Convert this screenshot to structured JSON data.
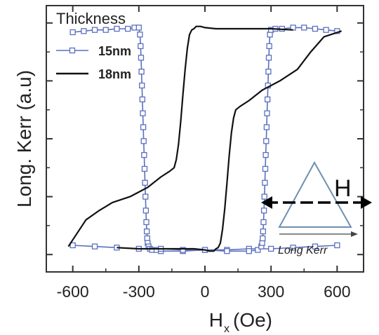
{
  "chart_data": {
    "type": "line",
    "title": "",
    "xlabel": "H",
    "xlabel_subscript": "x",
    "xlabel_unit": "(Oe)",
    "ylabel": "Long. Kerr (a.u)",
    "xlim": [
      -720,
      720
    ],
    "ylim": [
      -1.15,
      1.15
    ],
    "x_ticks": [
      -600,
      -300,
      0,
      300,
      600
    ],
    "x_tick_labels": [
      "-600",
      "-300",
      "0",
      "300",
      "600"
    ],
    "grid": false,
    "legend": {
      "title": "Thickness",
      "position": "top-left",
      "entries": [
        "15nm",
        "18nm"
      ]
    },
    "series": [
      {
        "name": "15nm",
        "color": "#5a6fc0",
        "marker": "open-square",
        "branches": [
          {
            "x": [
              -600,
              -550,
              -500,
              -450,
              -400,
              -350,
              -320,
              -300,
              -295,
              -292,
              -290,
              -288,
              -286,
              -284,
              -282,
              -280,
              -278,
              -276,
              -274,
              -272,
              -270,
              -268,
              -266,
              -264,
              -262,
              -260,
              -256,
              -250,
              -240,
              -220,
              -200,
              -100,
              0,
              100,
              200,
              300,
              400,
              500,
              600
            ],
            "y": [
              0.92,
              0.93,
              0.94,
              0.94,
              0.95,
              0.95,
              0.96,
              0.96,
              0.9,
              0.8,
              0.7,
              0.58,
              0.46,
              0.34,
              0.22,
              0.1,
              -0.02,
              -0.14,
              -0.26,
              -0.38,
              -0.5,
              -0.62,
              -0.72,
              -0.8,
              -0.86,
              -0.9,
              -0.93,
              -0.95,
              -0.96,
              -0.96,
              -0.97,
              -0.97,
              -0.96,
              -0.96,
              -0.95,
              -0.95,
              -0.94,
              -0.93,
              -0.92
            ]
          },
          {
            "x": [
              -600,
              -500,
              -400,
              -300,
              -200,
              -100,
              0,
              100,
              200,
              240,
              256,
              260,
              262,
              264,
              266,
              268,
              270,
              272,
              274,
              276,
              278,
              280,
              282,
              284,
              286,
              288,
              290,
              292,
              295,
              300,
              320,
              350,
              400,
              450,
              500,
              550,
              600
            ],
            "y": [
              -0.92,
              -0.93,
              -0.94,
              -0.95,
              -0.95,
              -0.96,
              -0.96,
              -0.97,
              -0.97,
              -0.96,
              -0.93,
              -0.9,
              -0.86,
              -0.8,
              -0.72,
              -0.62,
              -0.5,
              -0.38,
              -0.26,
              -0.14,
              -0.02,
              0.1,
              0.22,
              0.34,
              0.46,
              0.58,
              0.7,
              0.8,
              0.9,
              0.94,
              0.95,
              0.95,
              0.96,
              0.96,
              0.95,
              0.94,
              0.93
            ]
          }
        ]
      },
      {
        "name": "18nm",
        "color": "#111111",
        "marker": "none",
        "branches": [
          {
            "x": [
              620,
              540,
              480,
              420,
              340,
              260,
              200,
              160,
              140,
              130,
              120,
              110,
              100,
              90,
              80,
              70,
              60,
              50,
              45,
              40,
              30,
              20,
              0,
              -50,
              -100,
              -200,
              -300,
              -400
            ],
            "y": [
              0.93,
              0.88,
              0.75,
              0.6,
              0.5,
              0.42,
              0.33,
              0.28,
              0.25,
              0.18,
              0.05,
              -0.15,
              -0.38,
              -0.6,
              -0.78,
              -0.9,
              -0.94,
              -0.95,
              -0.96,
              -0.97,
              -0.97,
              -0.97,
              -0.96,
              -0.95,
              -0.95,
              -0.95,
              -0.95,
              -0.94
            ]
          },
          {
            "x": [
              -620,
              -540,
              -480,
              -420,
              -340,
              -260,
              -200,
              -160,
              -140,
              -130,
              -120,
              -110,
              -100,
              -90,
              -80,
              -70,
              -60,
              -50,
              -45,
              -40,
              -30,
              -20,
              0,
              50,
              100,
              200,
              300,
              400
            ],
            "y": [
              -0.93,
              -0.7,
              -0.62,
              -0.55,
              -0.5,
              -0.42,
              -0.33,
              -0.28,
              -0.25,
              -0.18,
              -0.05,
              0.15,
              0.38,
              0.6,
              0.78,
              0.9,
              0.94,
              0.95,
              0.96,
              0.97,
              0.97,
              0.97,
              0.96,
              0.95,
              0.95,
              0.95,
              0.95,
              0.94
            ]
          }
        ]
      }
    ],
    "inset": {
      "field_label": "H",
      "caption": "Long Kerr",
      "shape_color": "#6f8fb0",
      "arrow_color": "#000000"
    }
  }
}
